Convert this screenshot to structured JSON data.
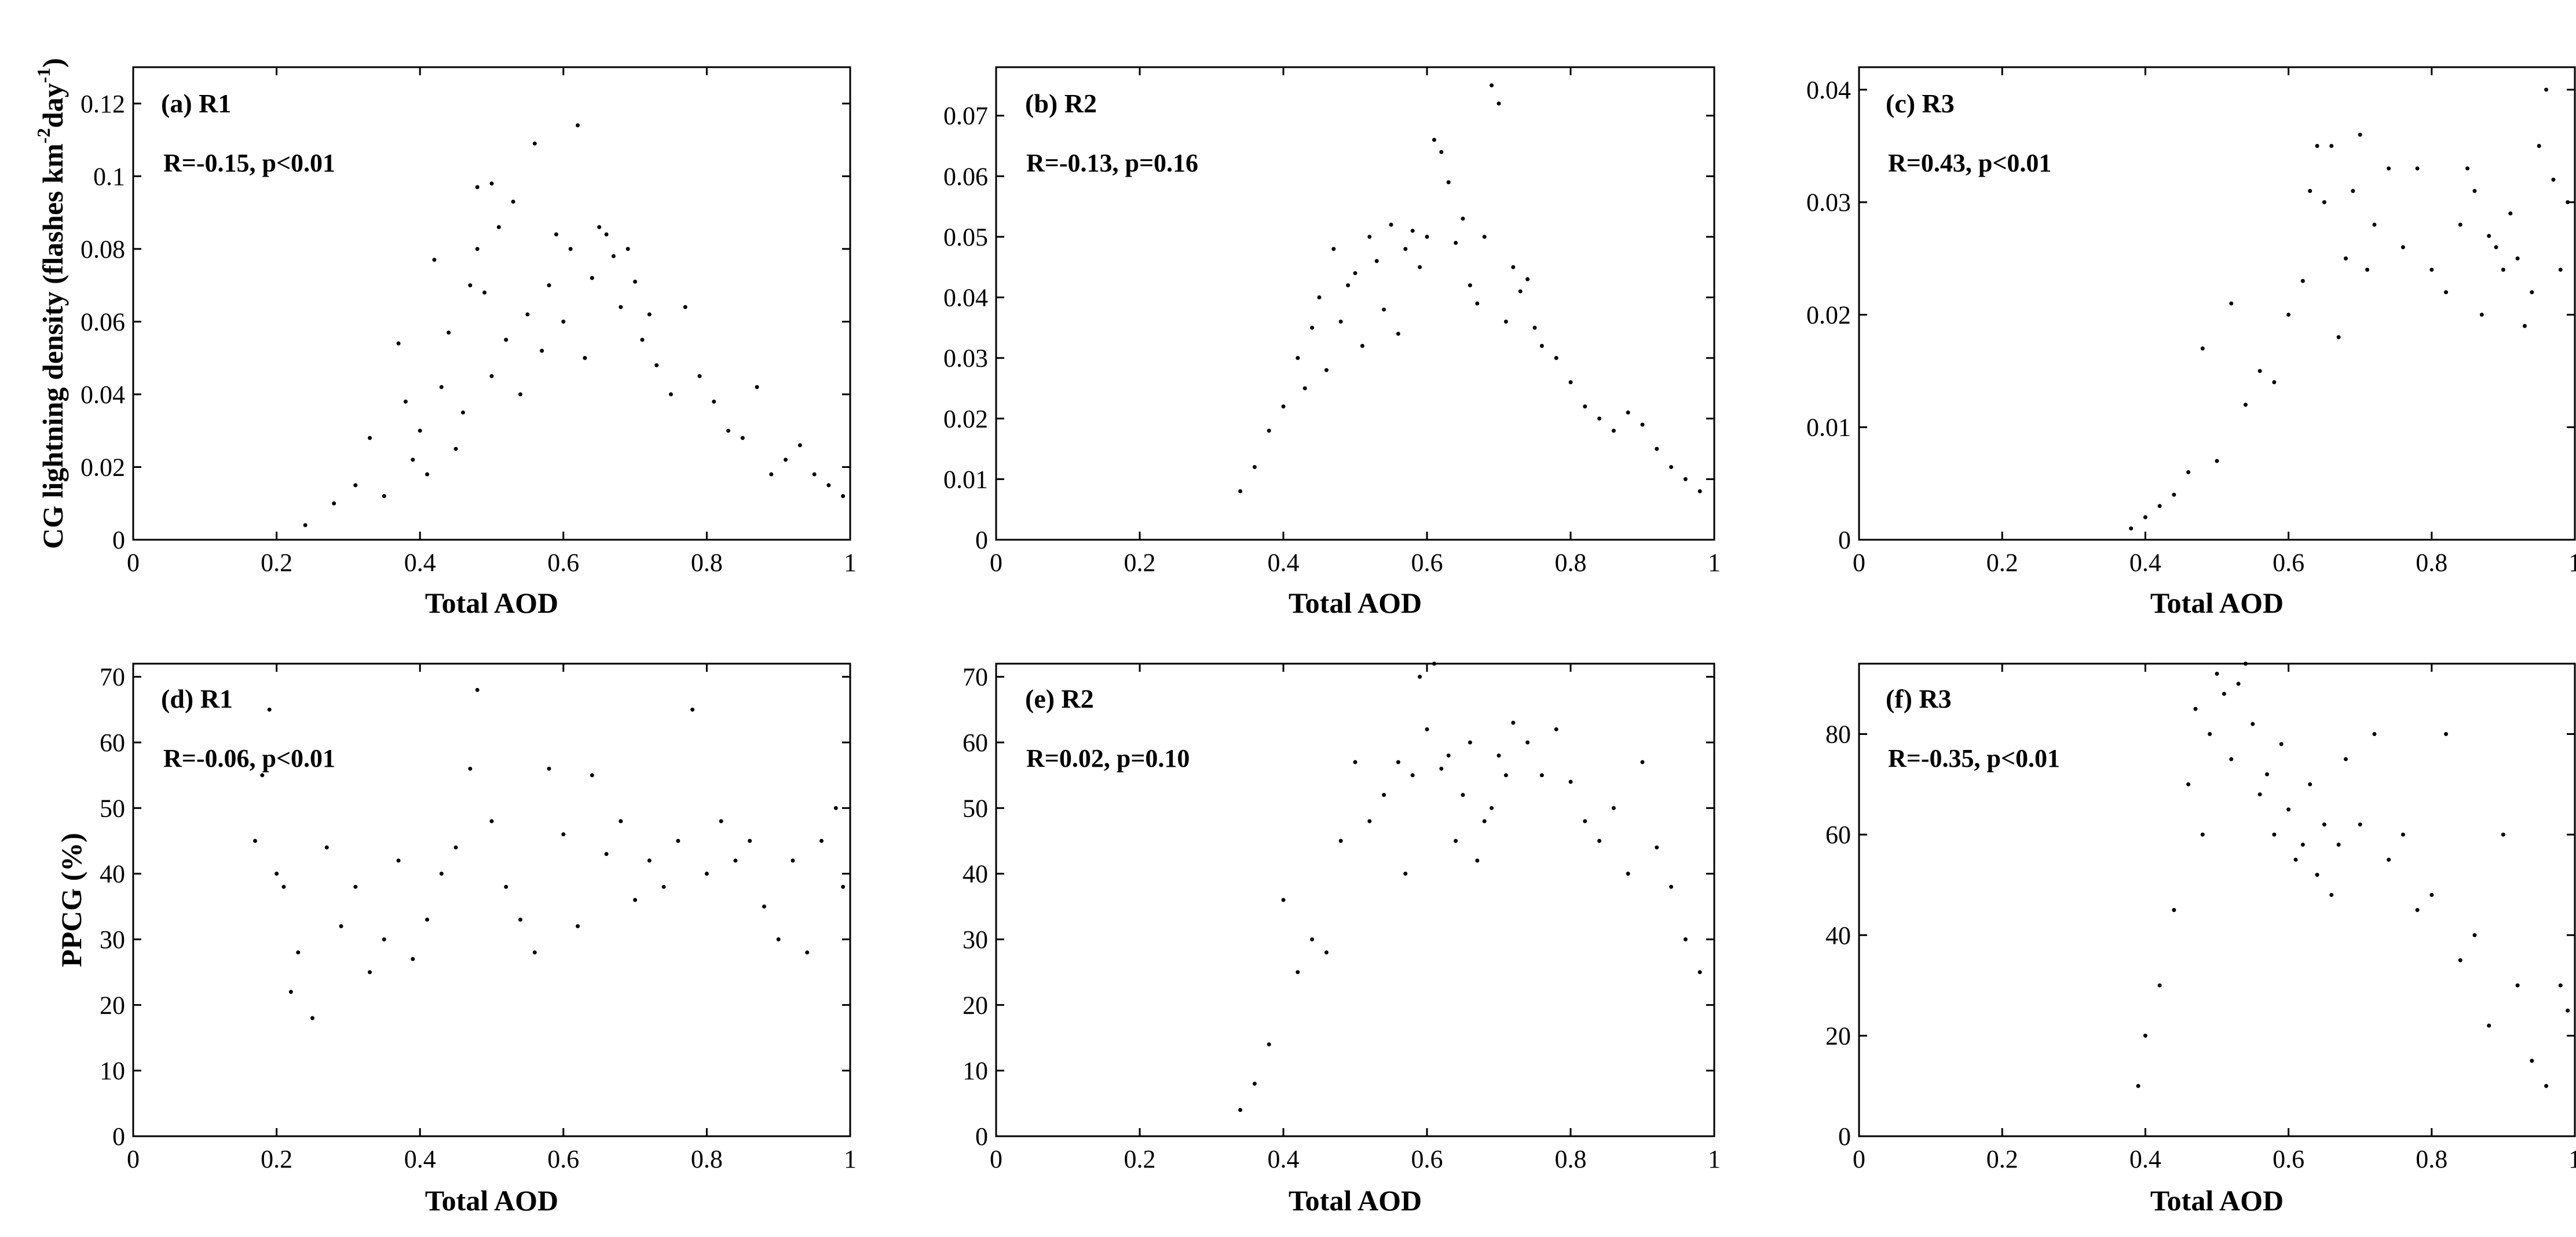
{
  "chart_data": [
    {
      "type": "scatter",
      "panel": "(a) R1",
      "title": "(a) R1",
      "annotation": "R=-0.15, p<0.01",
      "xlabel": "Total AOD",
      "ylabel": "CG lightning density (flashes km-2day-1)",
      "xlim": [
        0,
        1
      ],
      "ylim": [
        0,
        0.13
      ],
      "xticks": [
        "0",
        "0.2",
        "0.4",
        "0.6",
        "0.8",
        "1"
      ],
      "yticks": [
        "0",
        "0.02",
        "0.04",
        "0.06",
        "0.08",
        "0.1",
        "0.12"
      ],
      "x": [
        0.24,
        0.28,
        0.31,
        0.33,
        0.35,
        0.37,
        0.38,
        0.39,
        0.4,
        0.41,
        0.42,
        0.43,
        0.44,
        0.45,
        0.46,
        0.47,
        0.48,
        0.48,
        0.49,
        0.5,
        0.5,
        0.51,
        0.52,
        0.53,
        0.54,
        0.55,
        0.56,
        0.57,
        0.58,
        0.59,
        0.6,
        0.61,
        0.62,
        0.63,
        0.64,
        0.65,
        0.66,
        0.67,
        0.68,
        0.69,
        0.7,
        0.71,
        0.72,
        0.73,
        0.75,
        0.77,
        0.79,
        0.81,
        0.83,
        0.85,
        0.87,
        0.89,
        0.91,
        0.93,
        0.95,
        0.97,
        0.99
      ],
      "y": [
        0.004,
        0.01,
        0.015,
        0.028,
        0.012,
        0.054,
        0.038,
        0.022,
        0.03,
        0.018,
        0.077,
        0.042,
        0.057,
        0.025,
        0.035,
        0.07,
        0.08,
        0.097,
        0.068,
        0.098,
        0.045,
        0.086,
        0.055,
        0.093,
        0.04,
        0.062,
        0.109,
        0.052,
        0.07,
        0.084,
        0.06,
        0.08,
        0.114,
        0.05,
        0.072,
        0.086,
        0.084,
        0.078,
        0.064,
        0.08,
        0.071,
        0.055,
        0.062,
        0.048,
        0.04,
        0.064,
        0.045,
        0.038,
        0.03,
        0.028,
        0.042,
        0.018,
        0.022,
        0.026,
        0.018,
        0.015,
        0.012
      ]
    },
    {
      "type": "scatter",
      "panel": "(b) R2",
      "title": "(b) R2",
      "annotation": "R=-0.13, p=0.16",
      "xlabel": "Total AOD",
      "ylabel": "",
      "xlim": [
        0,
        1
      ],
      "ylim": [
        0,
        0.078
      ],
      "xticks": [
        "0",
        "0.2",
        "0.4",
        "0.6",
        "0.8",
        "1"
      ],
      "yticks": [
        "0",
        "0.01",
        "0.02",
        "0.03",
        "0.04",
        "0.05",
        "0.06",
        "0.07"
      ],
      "x": [
        0.34,
        0.36,
        0.38,
        0.4,
        0.42,
        0.43,
        0.44,
        0.45,
        0.46,
        0.47,
        0.48,
        0.49,
        0.5,
        0.51,
        0.52,
        0.53,
        0.54,
        0.55,
        0.56,
        0.57,
        0.58,
        0.59,
        0.6,
        0.61,
        0.62,
        0.63,
        0.64,
        0.65,
        0.66,
        0.67,
        0.68,
        0.69,
        0.7,
        0.71,
        0.72,
        0.73,
        0.74,
        0.75,
        0.76,
        0.78,
        0.8,
        0.82,
        0.84,
        0.86,
        0.88,
        0.9,
        0.92,
        0.94,
        0.96,
        0.98
      ],
      "y": [
        0.008,
        0.012,
        0.018,
        0.022,
        0.03,
        0.025,
        0.035,
        0.04,
        0.028,
        0.048,
        0.036,
        0.042,
        0.044,
        0.032,
        0.05,
        0.046,
        0.038,
        0.052,
        0.034,
        0.048,
        0.051,
        0.045,
        0.05,
        0.066,
        0.064,
        0.059,
        0.049,
        0.053,
        0.042,
        0.039,
        0.05,
        0.075,
        0.072,
        0.036,
        0.045,
        0.041,
        0.043,
        0.035,
        0.032,
        0.03,
        0.026,
        0.022,
        0.02,
        0.018,
        0.021,
        0.019,
        0.015,
        0.012,
        0.01,
        0.008
      ]
    },
    {
      "type": "scatter",
      "panel": "(c) R3",
      "title": "(c) R3",
      "annotation": "R=0.43, p<0.01",
      "xlabel": "Total AOD",
      "ylabel": "",
      "xlim": [
        0,
        1
      ],
      "ylim": [
        0,
        0.042
      ],
      "xticks": [
        "0",
        "0.2",
        "0.4",
        "0.6",
        "0.8",
        "1"
      ],
      "yticks": [
        "0",
        "0.01",
        "0.02",
        "0.03",
        "0.04"
      ],
      "x": [
        0.38,
        0.4,
        0.42,
        0.44,
        0.46,
        0.48,
        0.5,
        0.52,
        0.54,
        0.56,
        0.58,
        0.6,
        0.62,
        0.63,
        0.64,
        0.65,
        0.66,
        0.67,
        0.68,
        0.69,
        0.7,
        0.71,
        0.72,
        0.74,
        0.76,
        0.78,
        0.8,
        0.82,
        0.84,
        0.85,
        0.86,
        0.87,
        0.88,
        0.89,
        0.9,
        0.91,
        0.92,
        0.93,
        0.94,
        0.95,
        0.96,
        0.97,
        0.98,
        0.99
      ],
      "y": [
        0.001,
        0.002,
        0.003,
        0.004,
        0.006,
        0.017,
        0.007,
        0.021,
        0.012,
        0.015,
        0.014,
        0.02,
        0.023,
        0.031,
        0.035,
        0.03,
        0.035,
        0.018,
        0.025,
        0.031,
        0.036,
        0.024,
        0.028,
        0.033,
        0.026,
        0.033,
        0.024,
        0.022,
        0.028,
        0.033,
        0.031,
        0.02,
        0.027,
        0.026,
        0.024,
        0.029,
        0.025,
        0.019,
        0.022,
        0.035,
        0.04,
        0.032,
        0.024,
        0.03
      ]
    },
    {
      "type": "scatter",
      "panel": "(d) R1",
      "title": "(d) R1",
      "annotation": "R=-0.06, p<0.01",
      "xlabel": "Total AOD",
      "ylabel": "PPCG (%)",
      "xlim": [
        0,
        1
      ],
      "ylim": [
        0,
        72
      ],
      "xticks": [
        "0",
        "0.2",
        "0.4",
        "0.6",
        "0.8",
        "1"
      ],
      "yticks": [
        "0",
        "10",
        "20",
        "30",
        "40",
        "50",
        "60",
        "70"
      ],
      "x": [
        0.17,
        0.18,
        0.19,
        0.2,
        0.21,
        0.22,
        0.23,
        0.25,
        0.27,
        0.29,
        0.31,
        0.33,
        0.35,
        0.37,
        0.39,
        0.41,
        0.43,
        0.45,
        0.47,
        0.48,
        0.5,
        0.52,
        0.54,
        0.56,
        0.58,
        0.6,
        0.62,
        0.64,
        0.66,
        0.68,
        0.7,
        0.72,
        0.74,
        0.76,
        0.78,
        0.8,
        0.82,
        0.84,
        0.86,
        0.88,
        0.9,
        0.92,
        0.94,
        0.96,
        0.98,
        0.99
      ],
      "y": [
        45,
        55,
        65,
        40,
        38,
        22,
        28,
        18,
        44,
        32,
        38,
        25,
        30,
        42,
        27,
        33,
        40,
        44,
        56,
        68,
        48,
        38,
        33,
        28,
        56,
        46,
        32,
        55,
        43,
        48,
        36,
        42,
        38,
        45,
        65,
        40,
        48,
        42,
        45,
        35,
        30,
        42,
        28,
        45,
        50,
        38
      ]
    },
    {
      "type": "scatter",
      "panel": "(e) R2",
      "title": "(e) R2",
      "annotation": "R=0.02, p=0.10",
      "xlabel": "Total AOD",
      "ylabel": "",
      "xlim": [
        0,
        1
      ],
      "ylim": [
        0,
        72
      ],
      "xticks": [
        "0",
        "0.2",
        "0.4",
        "0.6",
        "0.8",
        "1"
      ],
      "yticks": [
        "0",
        "10",
        "20",
        "30",
        "40",
        "50",
        "60",
        "70"
      ],
      "x": [
        0.34,
        0.36,
        0.38,
        0.4,
        0.42,
        0.44,
        0.46,
        0.48,
        0.5,
        0.52,
        0.54,
        0.56,
        0.57,
        0.58,
        0.59,
        0.6,
        0.61,
        0.62,
        0.63,
        0.64,
        0.65,
        0.66,
        0.67,
        0.68,
        0.69,
        0.7,
        0.71,
        0.72,
        0.74,
        0.76,
        0.78,
        0.8,
        0.82,
        0.84,
        0.86,
        0.88,
        0.9,
        0.92,
        0.94,
        0.96,
        0.98
      ],
      "y": [
        4,
        8,
        14,
        36,
        25,
        30,
        28,
        45,
        57,
        48,
        52,
        57,
        40,
        55,
        70,
        62,
        72,
        56,
        58,
        45,
        52,
        60,
        42,
        48,
        50,
        58,
        55,
        63,
        60,
        55,
        62,
        54,
        48,
        45,
        50,
        40,
        57,
        44,
        38,
        30,
        25
      ]
    },
    {
      "type": "scatter",
      "panel": "(f) R3",
      "title": "(f) R3",
      "annotation": "R=-0.35, p<0.01",
      "xlabel": "Total AOD",
      "ylabel": "",
      "xlim": [
        0,
        1
      ],
      "ylim": [
        0,
        94
      ],
      "xticks": [
        "0",
        "0.2",
        "0.4",
        "0.6",
        "0.8",
        "1"
      ],
      "yticks": [
        "0",
        "20",
        "40",
        "60",
        "80"
      ],
      "x": [
        0.39,
        0.4,
        0.42,
        0.44,
        0.46,
        0.47,
        0.48,
        0.49,
        0.5,
        0.51,
        0.52,
        0.53,
        0.54,
        0.55,
        0.56,
        0.57,
        0.58,
        0.59,
        0.6,
        0.61,
        0.62,
        0.63,
        0.64,
        0.65,
        0.66,
        0.67,
        0.68,
        0.7,
        0.72,
        0.74,
        0.76,
        0.78,
        0.8,
        0.82,
        0.84,
        0.86,
        0.88,
        0.9,
        0.92,
        0.94,
        0.96,
        0.98,
        0.99
      ],
      "y": [
        10,
        20,
        30,
        45,
        70,
        85,
        60,
        80,
        92,
        88,
        75,
        90,
        94,
        82,
        68,
        72,
        60,
        78,
        65,
        55,
        58,
        70,
        52,
        62,
        48,
        58,
        75,
        62,
        80,
        55,
        60,
        45,
        48,
        80,
        35,
        40,
        22,
        60,
        30,
        15,
        10,
        30,
        25
      ]
    }
  ]
}
